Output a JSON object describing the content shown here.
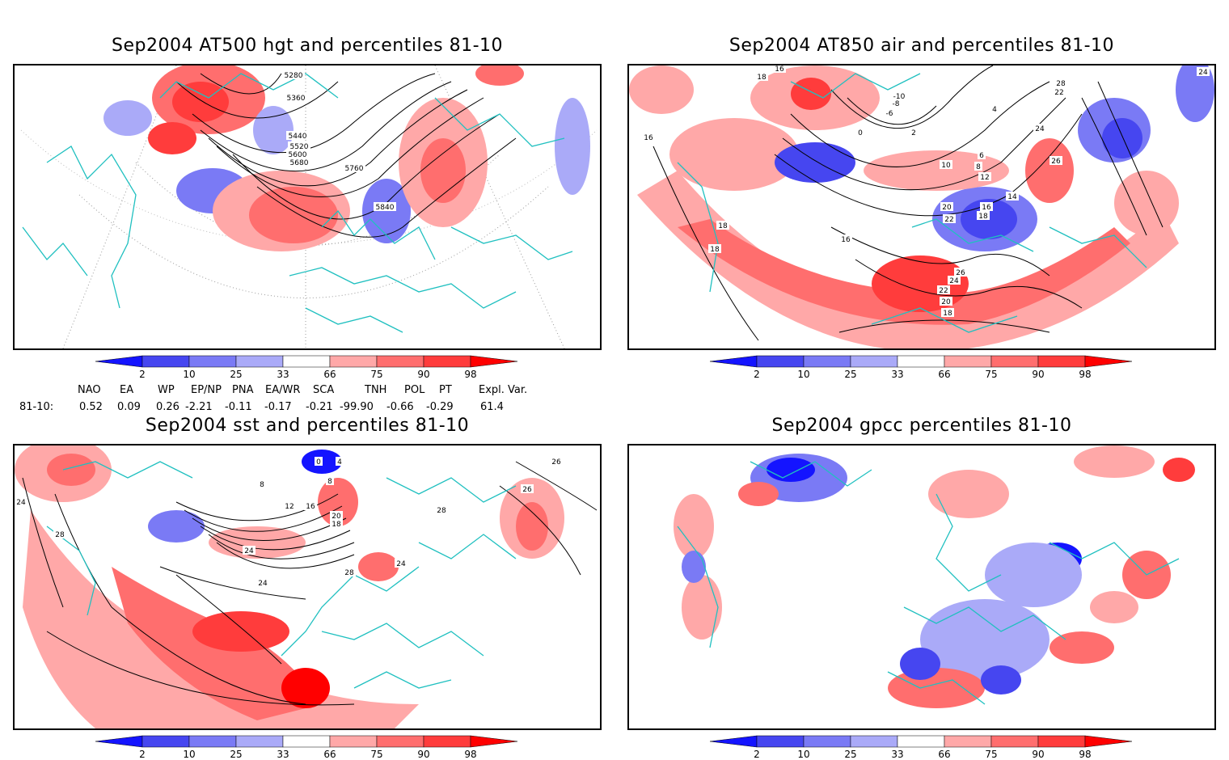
{
  "panels": [
    {
      "title": "Sep2004 AT500 hgt and percentiles 81-10",
      "contour_labels": [
        "5280",
        "5360",
        "5440",
        "5520",
        "5600",
        "5680",
        "5760",
        "5840"
      ]
    },
    {
      "title": "Sep2004 AT850 air and percentiles 81-10",
      "contour_labels": [
        "16",
        "18",
        "-10",
        "-8",
        "-6",
        "0",
        "2",
        "4",
        "6",
        "8",
        "10",
        "12",
        "14",
        "16",
        "18",
        "20",
        "22",
        "24",
        "26",
        "28",
        "22",
        "24",
        "16",
        "18",
        "18",
        "16",
        "18",
        "20",
        "22",
        "24",
        "26"
      ]
    },
    {
      "title": "Sep2004 sst and percentiles 81-10",
      "contour_labels": [
        "24",
        "28",
        "0",
        "4",
        "8",
        "8",
        "12",
        "16",
        "20",
        "18",
        "24",
        "24",
        "24",
        "28",
        "28",
        "26",
        "26"
      ]
    },
    {
      "title": "Sep2004 gpcc percentiles 81-10",
      "contour_labels": []
    }
  ],
  "colorbar": {
    "labels": [
      "2",
      "10",
      "25",
      "33",
      "66",
      "75",
      "90",
      "98"
    ],
    "colors": {
      "b1": "#1414ff",
      "b2": "#4646f0",
      "b3": "#7a7af5",
      "b4": "#aaaaf8",
      "r1": "#ffa8a8",
      "r2": "#ff6e6e",
      "r3": "#ff3c3c",
      "r4": "#ff0000"
    }
  },
  "teleconnections": {
    "row_label": "81-10:",
    "headers": [
      "NAO",
      "EA",
      "WP",
      "EP/NP",
      "PNA",
      "EA/WR",
      "SCA",
      "TNH",
      "POL",
      "PT",
      "Expl. Var."
    ],
    "values": [
      "0.52",
      "0.09",
      "0.26",
      "-2.21",
      "-0.11",
      "-0.17",
      "-0.21",
      "-99.90",
      "-0.66",
      "-0.29",
      "61.4"
    ]
  },
  "map_colors": {
    "coast": "#20c0c0",
    "contour": "#000000",
    "grid": "#999999"
  }
}
